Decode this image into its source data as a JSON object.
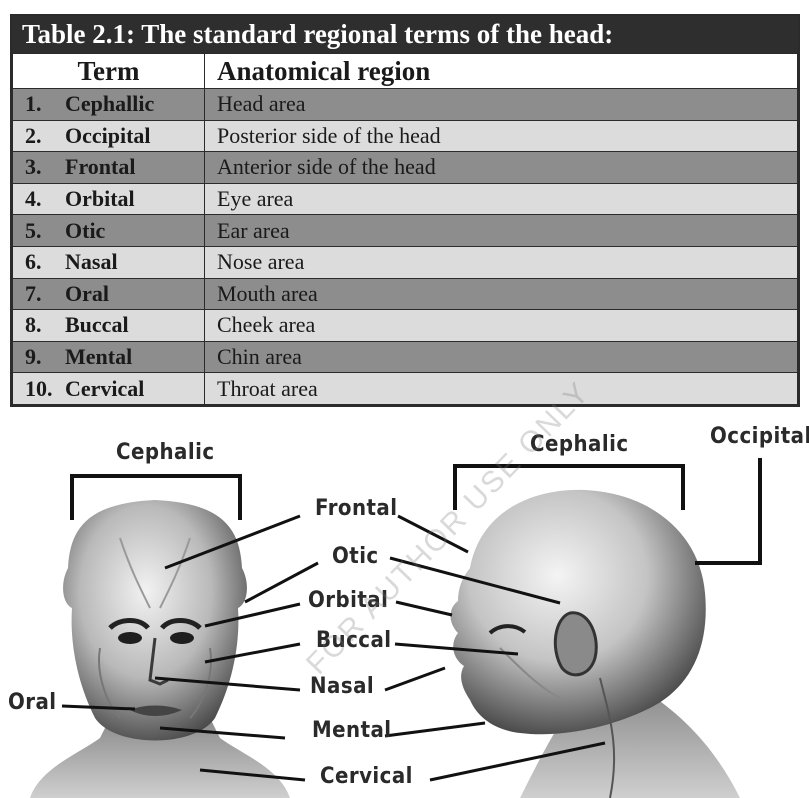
{
  "table": {
    "title": "Table 2.1: The standard regional terms of the head:",
    "headers": {
      "term": "Term",
      "region": "Anatomical region"
    },
    "rows": [
      {
        "num": "1.",
        "term": "Cephallic",
        "region": "Head area"
      },
      {
        "num": "2.",
        "term": "Occipital",
        "region": "Posterior side of the head"
      },
      {
        "num": "3.",
        "term": "Frontal",
        "region": "Anterior side of the head"
      },
      {
        "num": "4.",
        "term": "Orbital",
        "region": "Eye area"
      },
      {
        "num": "5.",
        "term": "Otic",
        "region": "Ear area"
      },
      {
        "num": "6.",
        "term": "Nasal",
        "region": "Nose area"
      },
      {
        "num": "7.",
        "term": "Oral",
        "region": "Mouth area"
      },
      {
        "num": "8.",
        "term": "Buccal",
        "region": "Cheek area"
      },
      {
        "num": "9.",
        "term": "Mental",
        "region": "Chin area"
      },
      {
        "num": "10.",
        "term": "Cervical",
        "region": "Throat area"
      }
    ]
  },
  "figure": {
    "labels": {
      "cephalic_left": "Cephalic",
      "cephalic_right": "Cephalic",
      "occipital": "Occipital",
      "frontal": "Frontal",
      "otic": "Otic",
      "orbital": "Orbital",
      "buccal": "Buccal",
      "nasal": "Nasal",
      "oral": "Oral",
      "mental": "Mental",
      "cervical": "Cervical"
    },
    "watermark": "FOR AUTHOR USE ONLY"
  }
}
